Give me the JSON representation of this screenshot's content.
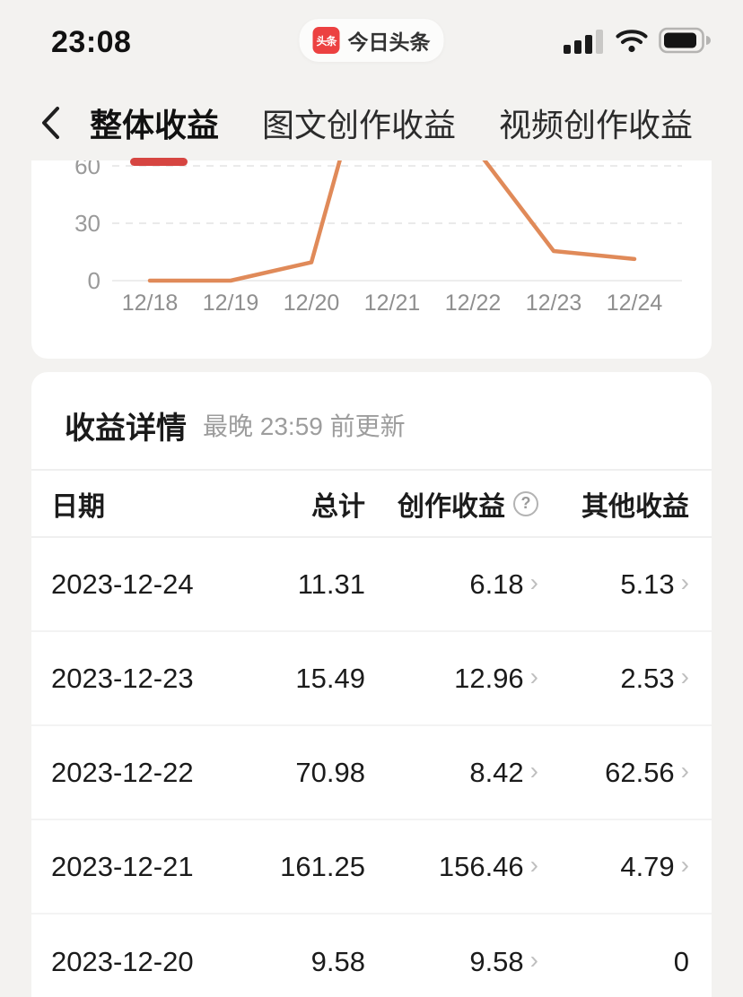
{
  "status_bar": {
    "time": "23:08",
    "badge_logo_text": "头条",
    "badge_app_name": "今日头条"
  },
  "nav": {
    "tabs": [
      {
        "label": "整体收益",
        "active": true
      },
      {
        "label": "图文创作收益",
        "active": false
      },
      {
        "label": "视频创作收益",
        "active": false
      }
    ]
  },
  "chart_data": {
    "type": "line",
    "x": [
      "12/18",
      "12/19",
      "12/20",
      "12/21",
      "12/22",
      "12/23",
      "12/24"
    ],
    "series": [
      {
        "name": "总计",
        "values": [
          0,
          0,
          9.58,
          161.25,
          70.98,
          15.49,
          11.31
        ]
      }
    ],
    "yticks": [
      0,
      30,
      60
    ],
    "title": "",
    "xlabel": "",
    "ylabel": "",
    "grid": "dashed-horizontal",
    "legend": "none",
    "line_color": "#e08a59",
    "note": "top of chart clipped by sticky tab bar; peak values exceed visible axis"
  },
  "details": {
    "title": "收益详情",
    "subtitle": "最晚 23:59 前更新",
    "table": {
      "headers": [
        "日期",
        "总计",
        "创作收益",
        "其他收益"
      ],
      "help_icon": "?",
      "rows": [
        {
          "date": "2023-12-24",
          "total": "11.31",
          "creation": "6.18",
          "other": "5.13",
          "creation_arrow": true,
          "other_arrow": true
        },
        {
          "date": "2023-12-23",
          "total": "15.49",
          "creation": "12.96",
          "other": "2.53",
          "creation_arrow": true,
          "other_arrow": true
        },
        {
          "date": "2023-12-22",
          "total": "70.98",
          "creation": "8.42",
          "other": "62.56",
          "creation_arrow": true,
          "other_arrow": true
        },
        {
          "date": "2023-12-21",
          "total": "161.25",
          "creation": "156.46",
          "other": "4.79",
          "creation_arrow": true,
          "other_arrow": true
        },
        {
          "date": "2023-12-20",
          "total": "9.58",
          "creation": "9.58",
          "other": "0",
          "creation_arrow": true,
          "other_arrow": false
        }
      ]
    }
  },
  "icons": {
    "chevron_right": "›"
  },
  "colors": {
    "accent_red": "#d64541",
    "brand_red": "#ec4141",
    "line_orange": "#e08a59",
    "page_bg": "#f3f2f0",
    "card_bg": "#ffffff"
  }
}
